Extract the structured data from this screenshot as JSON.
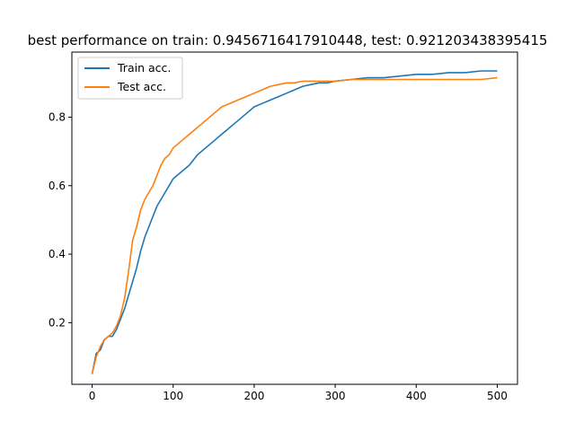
{
  "chart_data": {
    "type": "line",
    "title": "best performance on train: 0.9456716417910448, test: 0.921203438395415",
    "xlabel": "",
    "ylabel": "",
    "xlim": [
      -25,
      525
    ],
    "ylim": [
      0.02,
      0.99
    ],
    "xticks": [
      0,
      100,
      200,
      300,
      400,
      500
    ],
    "xtick_labels": [
      "0",
      "100",
      "200",
      "300",
      "400",
      "500"
    ],
    "yticks": [
      0.2,
      0.4,
      0.6,
      0.8
    ],
    "ytick_labels": [
      "0.2",
      "0.4",
      "0.6",
      "0.8"
    ],
    "grid": false,
    "legend_position": "top-left",
    "series": [
      {
        "name": "Train acc.",
        "color": "#1f77b4",
        "x": [
          0,
          5,
          10,
          15,
          20,
          25,
          30,
          35,
          40,
          45,
          50,
          55,
          60,
          65,
          70,
          75,
          80,
          85,
          90,
          95,
          100,
          110,
          120,
          130,
          140,
          150,
          160,
          170,
          180,
          190,
          200,
          210,
          220,
          230,
          240,
          250,
          260,
          270,
          280,
          290,
          300,
          320,
          340,
          360,
          380,
          400,
          420,
          440,
          460,
          480,
          500
        ],
        "y": [
          0.05,
          0.11,
          0.12,
          0.15,
          0.16,
          0.16,
          0.18,
          0.21,
          0.24,
          0.28,
          0.32,
          0.36,
          0.41,
          0.45,
          0.48,
          0.51,
          0.54,
          0.56,
          0.58,
          0.6,
          0.62,
          0.64,
          0.66,
          0.69,
          0.71,
          0.73,
          0.75,
          0.77,
          0.79,
          0.81,
          0.83,
          0.84,
          0.85,
          0.86,
          0.87,
          0.88,
          0.89,
          0.895,
          0.9,
          0.9,
          0.905,
          0.91,
          0.915,
          0.915,
          0.92,
          0.925,
          0.925,
          0.93,
          0.93,
          0.935,
          0.935
        ]
      },
      {
        "name": "Test acc.",
        "color": "#ff7f0e",
        "x": [
          0,
          5,
          10,
          15,
          20,
          25,
          30,
          35,
          40,
          45,
          50,
          55,
          60,
          65,
          70,
          75,
          80,
          85,
          90,
          95,
          100,
          110,
          120,
          130,
          140,
          150,
          160,
          170,
          180,
          190,
          200,
          210,
          220,
          230,
          240,
          250,
          260,
          270,
          280,
          290,
          300,
          320,
          340,
          360,
          380,
          400,
          420,
          440,
          460,
          480,
          500
        ],
        "y": [
          0.05,
          0.1,
          0.13,
          0.15,
          0.16,
          0.17,
          0.19,
          0.22,
          0.27,
          0.35,
          0.44,
          0.48,
          0.53,
          0.56,
          0.58,
          0.6,
          0.63,
          0.66,
          0.68,
          0.69,
          0.71,
          0.73,
          0.75,
          0.77,
          0.79,
          0.81,
          0.83,
          0.84,
          0.85,
          0.86,
          0.87,
          0.88,
          0.89,
          0.895,
          0.9,
          0.9,
          0.905,
          0.905,
          0.905,
          0.905,
          0.905,
          0.91,
          0.91,
          0.91,
          0.91,
          0.91,
          0.91,
          0.91,
          0.91,
          0.91,
          0.915
        ]
      }
    ]
  }
}
